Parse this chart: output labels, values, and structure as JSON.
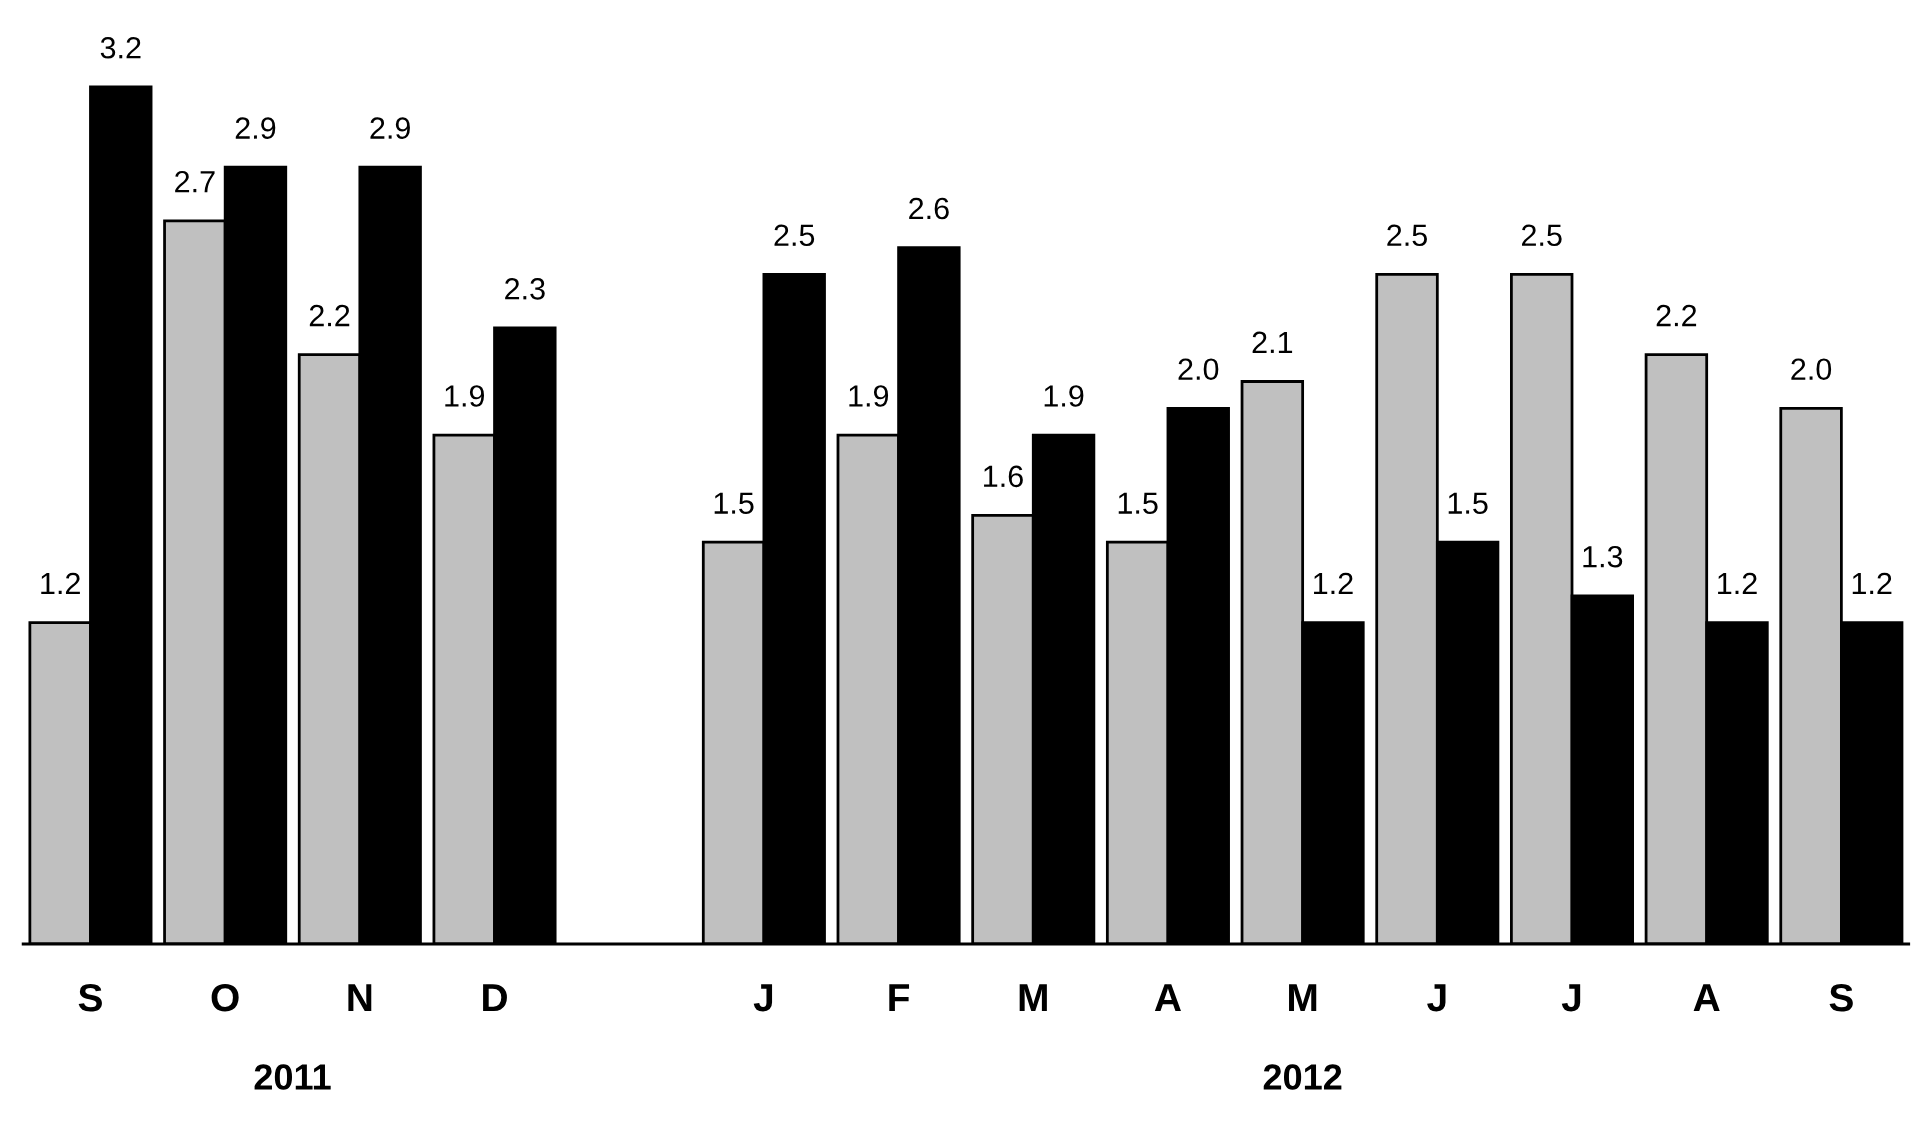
{
  "chart_data": {
    "type": "bar",
    "categories": [
      "S",
      "O",
      "N",
      "D",
      null,
      "J",
      "F",
      "M",
      "A",
      "M",
      "J",
      "J",
      "A",
      "S"
    ],
    "series": [
      {
        "color": "#c0c0c0",
        "values": [
          1.2,
          2.7,
          2.2,
          1.9,
          null,
          1.5,
          1.9,
          1.6,
          1.5,
          2.1,
          2.5,
          2.5,
          2.2,
          2.0
        ],
        "value_labels": [
          "1.2",
          "2.7",
          "2.2",
          "1.9",
          null,
          "1.5",
          "1.9",
          "1.6",
          "1.5",
          "2.1",
          "2.5",
          "2.5",
          "2.2",
          "2.0"
        ]
      },
      {
        "color": "#000000",
        "values": [
          3.2,
          2.9,
          2.9,
          2.3,
          null,
          2.5,
          2.6,
          1.9,
          2.0,
          1.2,
          1.5,
          1.3,
          1.2,
          1.2
        ],
        "value_labels": [
          "3.2",
          "2.9",
          "2.9",
          "2.3",
          null,
          "2.5",
          "2.6",
          "1.9",
          "2.0",
          "1.2",
          "1.5",
          "1.3",
          "1.2",
          "1.2"
        ]
      }
    ],
    "tick_labels": "x",
    "grid": false,
    "legend": false,
    "annotations": [
      "2011",
      "2012"
    ]
  }
}
